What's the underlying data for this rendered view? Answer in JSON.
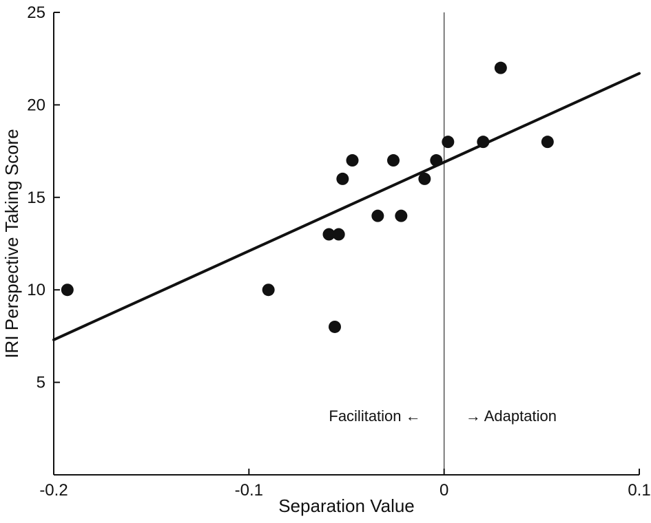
{
  "chart_data": {
    "type": "scatter",
    "title": "",
    "xlabel": "Separation Value",
    "ylabel": "IRI Perspective Taking Score",
    "xlim": [
      -0.2,
      0.1
    ],
    "ylim": [
      0,
      25
    ],
    "xtick_values": [
      -0.2,
      -0.1,
      0,
      0.1
    ],
    "xtick_labels": [
      "-0.2",
      "-0.1",
      "0",
      "0.1"
    ],
    "ytick_values": [
      5,
      10,
      15,
      20,
      25
    ],
    "ytick_labels": [
      "5",
      "10",
      "15",
      "20",
      "25"
    ],
    "grid": false,
    "legend": "none",
    "points": [
      [
        -0.193,
        10
      ],
      [
        -0.09,
        10
      ],
      [
        -0.059,
        13
      ],
      [
        -0.054,
        13
      ],
      [
        -0.056,
        8
      ],
      [
        -0.052,
        16
      ],
      [
        -0.047,
        17
      ],
      [
        -0.034,
        14
      ],
      [
        -0.026,
        17
      ],
      [
        -0.022,
        14
      ],
      [
        -0.01,
        16
      ],
      [
        -0.004,
        17
      ],
      [
        0.002,
        18
      ],
      [
        0.02,
        18
      ],
      [
        0.029,
        22
      ],
      [
        0.053,
        18
      ]
    ],
    "regression_line": {
      "x": [
        -0.2,
        0.1
      ],
      "y": [
        7.3,
        21.7
      ]
    },
    "vline_x": 0,
    "annotations": [
      {
        "text": "Facilitation ←",
        "x": -0.012,
        "y": 2.9,
        "anchor": "end"
      },
      {
        "text": "→ Adaptation",
        "x": 0.011,
        "y": 2.9,
        "anchor": "start"
      }
    ],
    "colors": {
      "point": "#111111",
      "line": "#111111",
      "axis": "#111111",
      "vline": "#4a4a4a",
      "text": "#111111",
      "background": "#ffffff"
    }
  }
}
